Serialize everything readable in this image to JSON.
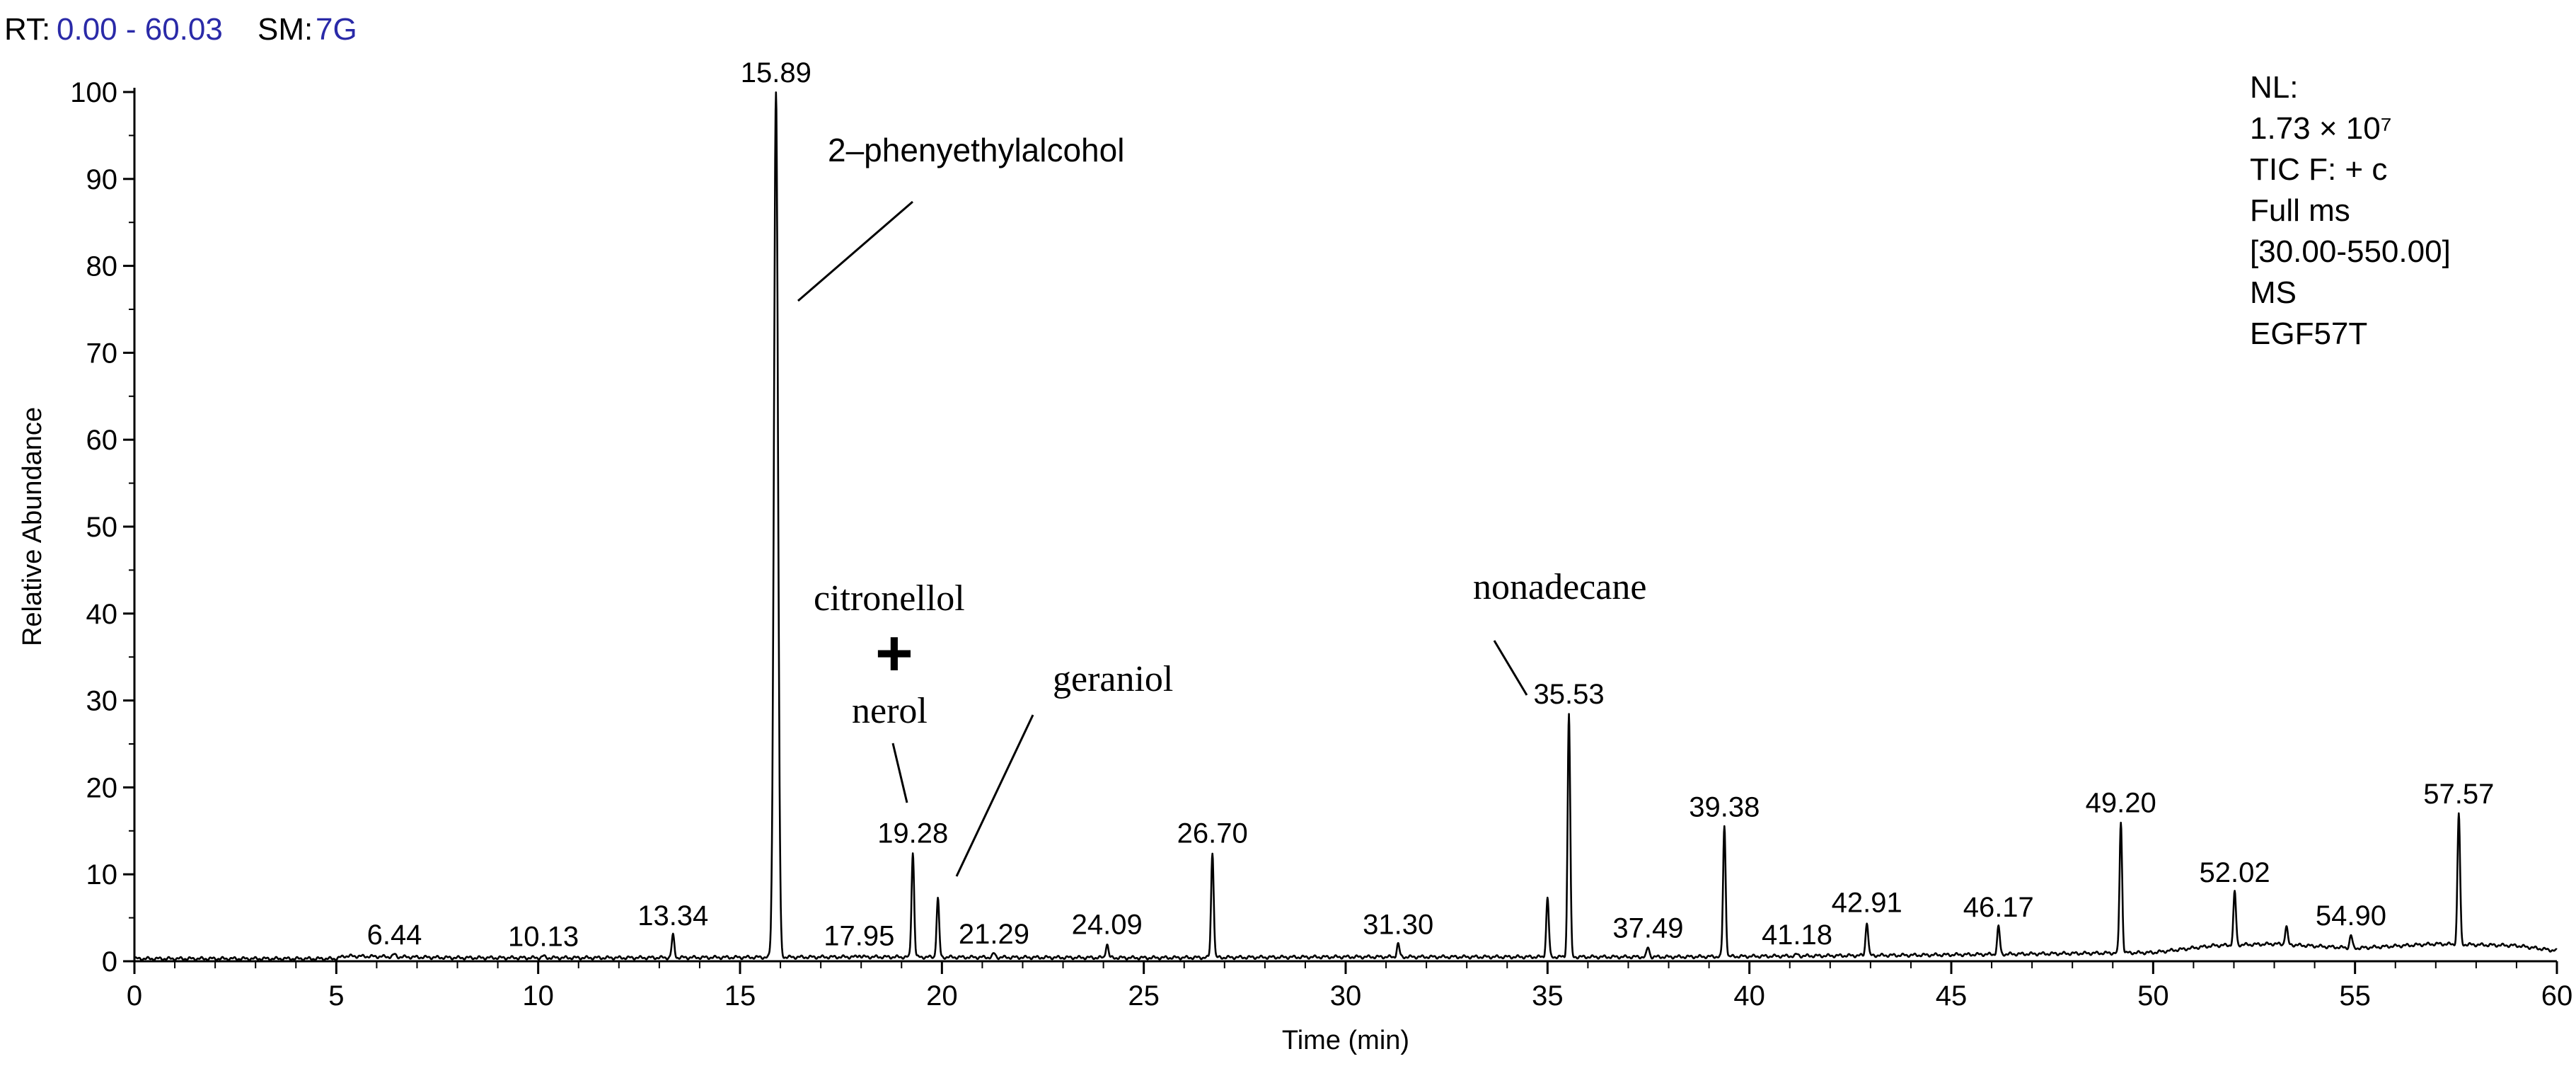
{
  "header": {
    "rt_label": "RT:",
    "rt_value": "0.00 - 60.03",
    "sm_label": "SM:",
    "sm_value": "7G",
    "value_color": "#2a2aa8"
  },
  "info": {
    "lines": [
      "NL:",
      "1.73 × 10⁷",
      "TIC F: + c",
      "Full ms",
      "[30.00-550.00]",
      "MS",
      "EGF57T"
    ]
  },
  "chart_data": {
    "type": "line",
    "xlabel": "Time (min)",
    "ylabel": "Relative Abundance",
    "xlim": [
      0,
      60
    ],
    "ylim": [
      0,
      100
    ],
    "x_ticks": [
      0,
      5,
      10,
      15,
      20,
      25,
      30,
      35,
      40,
      45,
      50,
      55,
      60
    ],
    "y_ticks": [
      0,
      10,
      20,
      30,
      40,
      50,
      60,
      70,
      80,
      90,
      100
    ],
    "grid": false,
    "legend": "none",
    "baseline": [
      [
        0,
        0.3
      ],
      [
        5,
        0.3
      ],
      [
        5.2,
        0.6
      ],
      [
        8,
        0.4
      ],
      [
        12,
        0.4
      ],
      [
        18,
        0.5
      ],
      [
        25,
        0.4
      ],
      [
        30,
        0.5
      ],
      [
        38,
        0.5
      ],
      [
        44,
        0.7
      ],
      [
        48,
        0.9
      ],
      [
        50,
        1.0
      ],
      [
        51.5,
        1.8
      ],
      [
        53,
        2.0
      ],
      [
        55,
        1.5
      ],
      [
        57,
        2.0
      ],
      [
        59,
        1.8
      ],
      [
        60,
        1.2
      ]
    ],
    "peaks": [
      {
        "x": 6.44,
        "y": 0.8,
        "label": "6.44"
      },
      {
        "x": 10.13,
        "y": 0.6,
        "label": "10.13"
      },
      {
        "x": 13.34,
        "y": 3.0,
        "label": "13.34"
      },
      {
        "x": 15.89,
        "y": 100,
        "label": "15.89"
      },
      {
        "x": 17.95,
        "y": 0.7,
        "label": "17.95"
      },
      {
        "x": 19.28,
        "y": 12.5,
        "label": "19.28"
      },
      {
        "x": 19.9,
        "y": 7.2,
        "label": ""
      },
      {
        "x": 21.29,
        "y": 0.9,
        "label": "21.29"
      },
      {
        "x": 24.09,
        "y": 2.0,
        "label": "24.09"
      },
      {
        "x": 26.7,
        "y": 12.5,
        "label": "26.70"
      },
      {
        "x": 31.3,
        "y": 2.0,
        "label": "31.30"
      },
      {
        "x": 35.0,
        "y": 7.3,
        "label": ""
      },
      {
        "x": 35.53,
        "y": 28.5,
        "label": "35.53"
      },
      {
        "x": 37.49,
        "y": 1.6,
        "label": "37.49"
      },
      {
        "x": 39.38,
        "y": 15.5,
        "label": "39.38"
      },
      {
        "x": 41.18,
        "y": 0.8,
        "label": "41.18"
      },
      {
        "x": 42.91,
        "y": 4.5,
        "label": "42.91"
      },
      {
        "x": 46.17,
        "y": 4.0,
        "label": "46.17"
      },
      {
        "x": 49.2,
        "y": 16.0,
        "label": "49.20"
      },
      {
        "x": 52.02,
        "y": 8.0,
        "label": "52.02"
      },
      {
        "x": 53.3,
        "y": 4.0,
        "label": ""
      },
      {
        "x": 54.9,
        "y": 3.0,
        "label": "54.90"
      },
      {
        "x": 57.57,
        "y": 17.0,
        "label": "57.57"
      }
    ],
    "annotations": [
      {
        "id": "phenylethyl",
        "text": "2–phenyethylalcohol"
      },
      {
        "id": "citronellol",
        "text": "citronellol"
      },
      {
        "id": "plus",
        "text": "+"
      },
      {
        "id": "nerol",
        "text": "nerol"
      },
      {
        "id": "geraniol",
        "text": "geraniol"
      },
      {
        "id": "nonadecane",
        "text": "nonadecane"
      }
    ]
  }
}
